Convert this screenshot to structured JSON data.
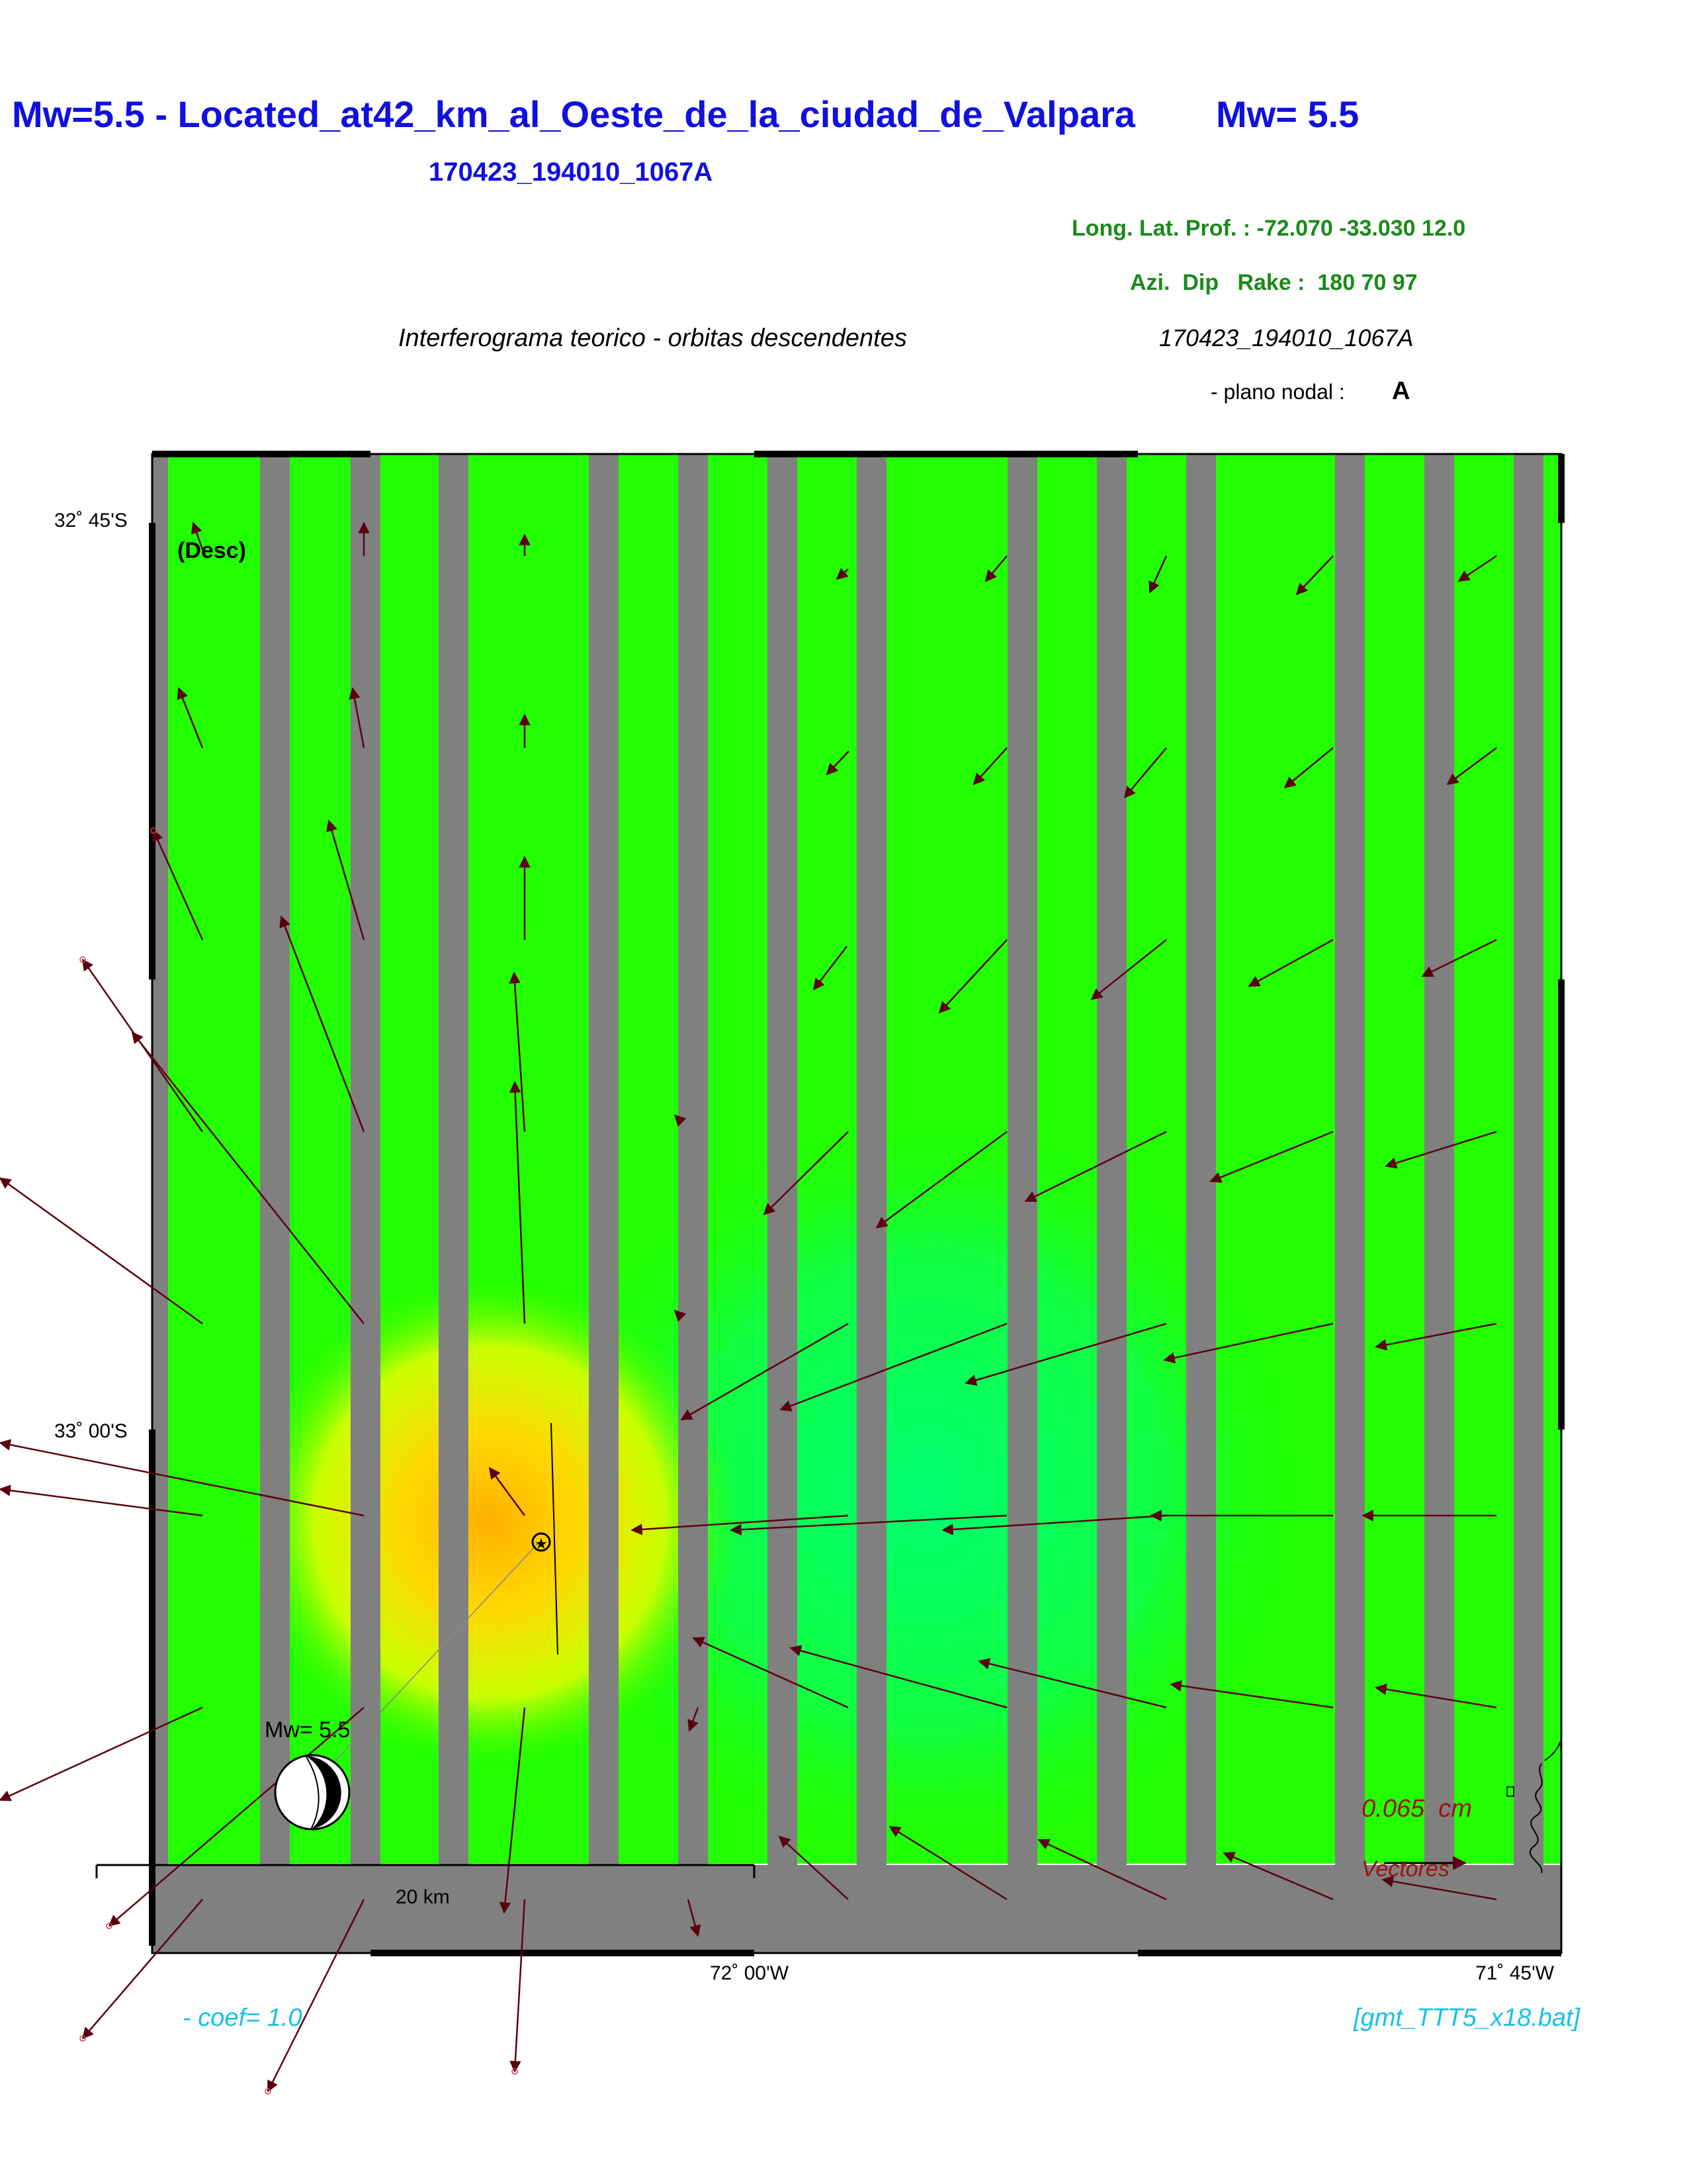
{
  "header": {
    "title_left": "Mw=5.5 - Located_at42_km_al_Oeste_de_la_ciudad_de_Valpara",
    "title_right": "Mw= 5.5",
    "event_id": "170423_194010_1067A",
    "coords_line": "Long. Lat. Prof. : -72.070 -33.030 12.0",
    "mech_line": "Azi.  Dip   Rake :  180 70 97",
    "interferogram_caption": "Interferograma teorico - orbitas descendentes",
    "event_id_italic": "170423_194010_1067A",
    "plano_label": "- plano nodal :",
    "plano_value": "A"
  },
  "map": {
    "desc_label": "(Desc)",
    "lat_labels": [
      "32˚ 45'S",
      "33˚ 00'S"
    ],
    "lon_labels": [
      "72˚ 00'W",
      "71˚ 45'W"
    ],
    "scale_label": "20 km",
    "beachball_label": "Mw= 5.5",
    "vector_scale_value": "0.065  cm",
    "vector_scale_label": "Vectores"
  },
  "footer": {
    "coef": "- coef=  1.0",
    "script": "[gmt_TTT5_x18.bat]"
  },
  "colors": {
    "title_blue": "#1010e0",
    "info_green": "#1a8a1a",
    "cyan": "#19c0e8",
    "arrow": "#5a0010",
    "scale_red": "#a01010",
    "stripe_gray": "#808080",
    "field_green": "#22ff00",
    "uplift_orange": "#ffbb00"
  }
}
